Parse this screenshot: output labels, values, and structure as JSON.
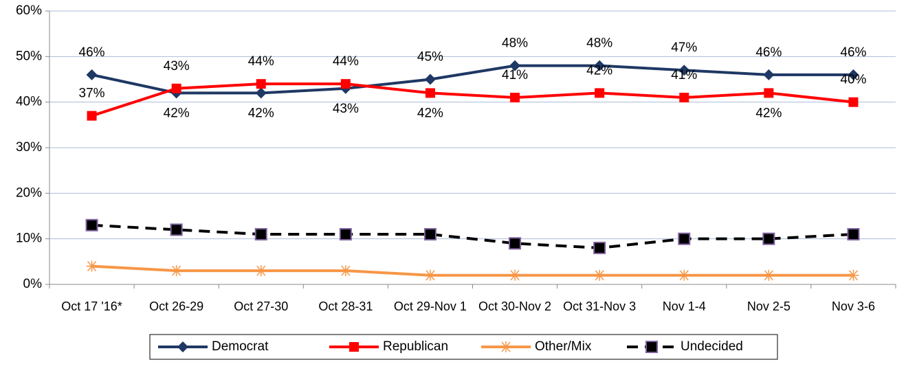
{
  "chart_data": {
    "type": "line",
    "categories": [
      "Oct 17 '16*",
      "Oct 26-29",
      "Oct 27-30",
      "Oct 28-31",
      "Oct 29-Nov 1",
      "Oct 30-Nov 2",
      "Oct 31-Nov 3",
      "Nov 1-4",
      "Nov 2-5",
      "Nov 3-6"
    ],
    "series": [
      {
        "name": "Democrat",
        "color": "#1f3864",
        "marker": "diamond",
        "dashed": false,
        "values": [
          46,
          42,
          42,
          43,
          45,
          48,
          48,
          47,
          46,
          46
        ],
        "value_labels": [
          "46%",
          "42%",
          "42%",
          "43%",
          "45%",
          "48%",
          "48%",
          "47%",
          "46%",
          "46%"
        ]
      },
      {
        "name": "Republican",
        "color": "#ff0000",
        "marker": "square",
        "dashed": false,
        "values": [
          37,
          43,
          44,
          44,
          42,
          41,
          42,
          41,
          42,
          40
        ],
        "value_labels": [
          "37%",
          "43%",
          "44%",
          "44%",
          "42%",
          "41%",
          "42%",
          "41%",
          "42%",
          "40%"
        ]
      },
      {
        "name": "Other/Mix",
        "color": "#f79646",
        "marker": "asterisk",
        "dashed": false,
        "values": [
          4,
          3,
          3,
          3,
          2,
          2,
          2,
          2,
          2,
          2
        ]
      },
      {
        "name": "Undecided",
        "color": "#000000",
        "marker": "square-outlined",
        "dashed": true,
        "values": [
          13,
          12,
          11,
          11,
          11,
          9,
          8,
          10,
          10,
          11
        ]
      }
    ],
    "ylim": [
      0,
      60
    ],
    "yticks": [
      {
        "value": 0,
        "label": "0%"
      },
      {
        "value": 10,
        "label": "10%"
      },
      {
        "value": 20,
        "label": "20%"
      },
      {
        "value": 30,
        "label": "30%"
      },
      {
        "value": 40,
        "label": "40%"
      },
      {
        "value": 50,
        "label": "50%"
      },
      {
        "value": 60,
        "label": "60%"
      }
    ],
    "grid": true,
    "legend": "bottom"
  }
}
